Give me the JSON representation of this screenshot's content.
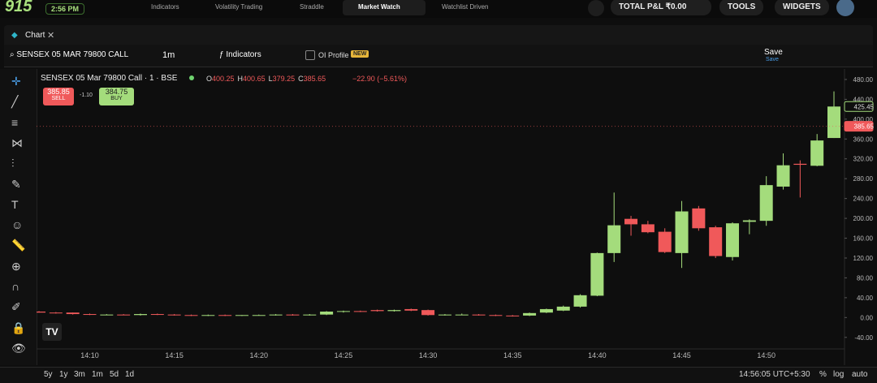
{
  "top_bar": {
    "logo": "915",
    "clock": "2:56 PM",
    "tabs": [
      "Indicators",
      "Volatility Trading",
      "Straddle",
      "Market Watch",
      "Watchlist Driven"
    ],
    "pnl": "TOTAL P&L ₹0.00",
    "tools": "TOOLS",
    "widgets": "WIDGETS"
  },
  "chart_tab": {
    "title": "Chart"
  },
  "toolbar": {
    "symbol": "SENSEX 05 MAR 79800 CALL",
    "interval": "1m",
    "indicators": "Indicators",
    "oi_profile": "OI Profile",
    "badge": "NEW",
    "save": "Save",
    "save_sub": "Save"
  },
  "legend": {
    "symbol": "SENSEX 05 Mar 79800 Call · 1 · BSE",
    "ohlc": [
      {
        "key": "O",
        "value": "400.25"
      },
      {
        "key": "H",
        "value": "400.65"
      },
      {
        "key": "L",
        "value": "379.25"
      },
      {
        "key": "C",
        "value": "385.65"
      }
    ],
    "change": "−22.90 (−5.61%)",
    "sell_price": "385.85",
    "sell": "SELL",
    "spread": "-1.10",
    "buy_price": "384.75",
    "buy": "BUY"
  },
  "chart_data": {
    "type": "candlestick",
    "categories": [
      null,
      null,
      null,
      "14:10",
      null,
      null,
      null,
      null,
      "14:15",
      null,
      null,
      null,
      null,
      "14:20",
      null,
      null,
      null,
      null,
      "14:25",
      null,
      null,
      null,
      null,
      "14:30",
      null,
      null,
      null,
      null,
      "14:35",
      null,
      null,
      null,
      null,
      "14:40",
      null,
      null,
      null,
      null,
      "14:45",
      null,
      null,
      null,
      null,
      "14:50",
      null,
      null,
      null,
      null
    ],
    "open": [
      12,
      10,
      10,
      7,
      6,
      6,
      5,
      7,
      6,
      5,
      4,
      5,
      4,
      5,
      5,
      6,
      5,
      6,
      12,
      13,
      15,
      13,
      17,
      15,
      5,
      6,
      6,
      5,
      4,
      4,
      10,
      14,
      22,
      44,
      130,
      199,
      188,
      173,
      130,
      220,
      182,
      122,
      193,
      195,
      264,
      310,
      306,
      362
    ],
    "high": [
      13,
      11,
      10,
      8,
      7,
      7,
      8,
      8,
      7,
      6,
      6,
      6,
      5,
      6,
      7,
      7,
      7,
      13,
      14,
      14,
      16,
      16,
      18,
      16,
      7,
      8,
      7,
      6,
      5,
      10,
      18,
      24,
      47,
      131,
      252,
      205,
      195,
      180,
      235,
      225,
      185,
      192,
      198,
      285,
      331,
      317,
      370,
      456
    ],
    "low": [
      10,
      8,
      6,
      5,
      5,
      5,
      4,
      5,
      4,
      3,
      3,
      3,
      3,
      4,
      4,
      4,
      4,
      5,
      10,
      11,
      12,
      12,
      13,
      4,
      4,
      5,
      4,
      3,
      2,
      3,
      9,
      13,
      20,
      43,
      112,
      165,
      170,
      130,
      100,
      175,
      120,
      115,
      168,
      185,
      258,
      242,
      305,
      362
    ],
    "close": [
      10,
      9,
      7,
      6,
      6,
      5,
      7,
      6,
      5,
      4,
      5,
      4,
      5,
      5,
      6,
      5,
      6,
      12,
      13,
      12,
      13,
      15,
      14,
      5,
      6,
      6,
      5,
      4,
      3,
      9,
      17,
      22,
      45,
      130,
      186,
      188,
      172,
      132,
      214,
      180,
      124,
      190,
      196,
      267,
      307,
      308,
      357,
      425.45
    ],
    "up_color": "#a4dc7c",
    "down_color": "#f0595a",
    "ylim": [
      -60,
      493
    ],
    "yticks": [
      {
        "value": -40,
        "label": "-40.00"
      },
      {
        "value": 0,
        "label": "0.00"
      },
      {
        "value": 40,
        "label": "40.00"
      },
      {
        "value": 80,
        "label": "80.00"
      },
      {
        "value": 120,
        "label": "120.00"
      },
      {
        "value": 160,
        "label": "160.00"
      },
      {
        "value": 200,
        "label": "200.00"
      },
      {
        "value": 240,
        "label": "240.00"
      },
      {
        "value": 280,
        "label": "280.00"
      },
      {
        "value": 320,
        "label": "320.00"
      },
      {
        "value": 360,
        "label": "360.00"
      },
      {
        "value": 400,
        "label": "400.00"
      },
      {
        "value": 440,
        "label": "440.00"
      },
      {
        "value": 480,
        "label": "480.00"
      }
    ],
    "price_markers": [
      {
        "value": 425.45,
        "label": "425.45",
        "color": "#a4dc7c",
        "dashed_line": false
      },
      {
        "value": 385.65,
        "label": "385.65",
        "color": "#f0595a",
        "dashed_line": true
      }
    ],
    "grid": false
  },
  "bottom_bar": {
    "ranges": [
      "5y",
      "1y",
      "3m",
      "1m",
      "5d",
      "1d"
    ],
    "time": "14:56:05 UTC+5:30",
    "percent": "%",
    "log": "log",
    "auto": "auto"
  }
}
